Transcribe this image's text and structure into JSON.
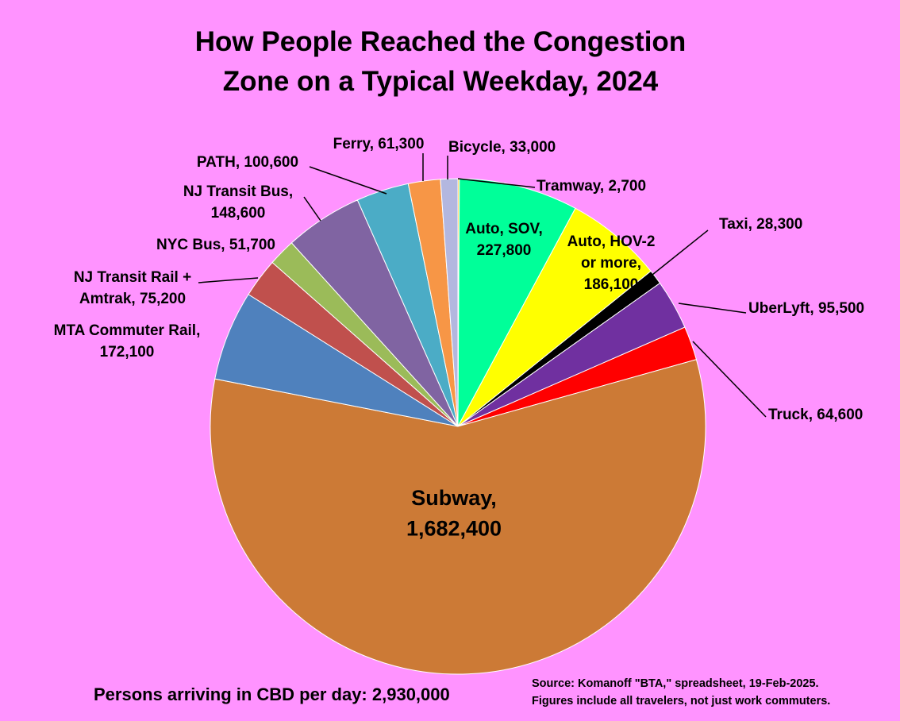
{
  "chart_data": {
    "type": "pie",
    "title": [
      "How People Reached the Congestion",
      "Zone on a Typical Weekday, 2024"
    ],
    "slices": [
      {
        "name": "Tramway",
        "value": 2700,
        "color": "#ffc000",
        "label": [
          "Tramway, 2,700"
        ]
      },
      {
        "name": "Auto, SOV",
        "value": 227800,
        "color": "#00ff99",
        "label": [
          "Auto, SOV,",
          "227,800"
        ]
      },
      {
        "name": "Auto, HOV-2 or more",
        "value": 186100,
        "color": "#ffff00",
        "label": [
          "Auto, HOV-2",
          "or more,",
          "186,100"
        ]
      },
      {
        "name": "Taxi",
        "value": 28300,
        "color": "#000000",
        "label": [
          "Taxi, 28,300"
        ]
      },
      {
        "name": "UberLyft",
        "value": 95500,
        "color": "#7030a0",
        "label": [
          "UberLyft, 95,500"
        ]
      },
      {
        "name": "Truck",
        "value": 64600,
        "color": "#ff0000",
        "label": [
          "Truck, 64,600"
        ]
      },
      {
        "name": "Subway",
        "value": 1682400,
        "color": "#cc7a36",
        "label": [
          "Subway,",
          "1,682,400"
        ]
      },
      {
        "name": "MTA Commuter Rail",
        "value": 172100,
        "color": "#4f81bd",
        "label": [
          "MTA Commuter Rail,",
          "172,100"
        ]
      },
      {
        "name": "NJ Transit Rail + Amtrak",
        "value": 75200,
        "color": "#c0504d",
        "label": [
          "NJ Transit Rail +",
          "Amtrak, 75,200"
        ]
      },
      {
        "name": "NYC Bus",
        "value": 51700,
        "color": "#9bbb59",
        "label": [
          "NYC Bus, 51,700"
        ]
      },
      {
        "name": "NJ Transit Bus",
        "value": 148600,
        "color": "#8064a2",
        "label": [
          "NJ Transit Bus,",
          "148,600"
        ]
      },
      {
        "name": "PATH",
        "value": 100600,
        "color": "#4bacc6",
        "label": [
          "PATH, 100,600"
        ]
      },
      {
        "name": "Ferry",
        "value": 61300,
        "color": "#f79646",
        "label": [
          "Ferry, 61,300"
        ]
      },
      {
        "name": "Bicycle",
        "value": 33000,
        "color": "#b3b7df",
        "label": [
          "Bicycle, 33,000"
        ]
      }
    ],
    "start": "12 o'clock",
    "direction": "clockwise"
  },
  "footer": {
    "total": "Persons arriving in CBD per day: 2,930,000",
    "source_lines": [
      "Source: Komanoff \"BTA,\" spreadsheet, 19-Feb-2025.",
      "Figures include all travelers, not just work commuters."
    ]
  }
}
